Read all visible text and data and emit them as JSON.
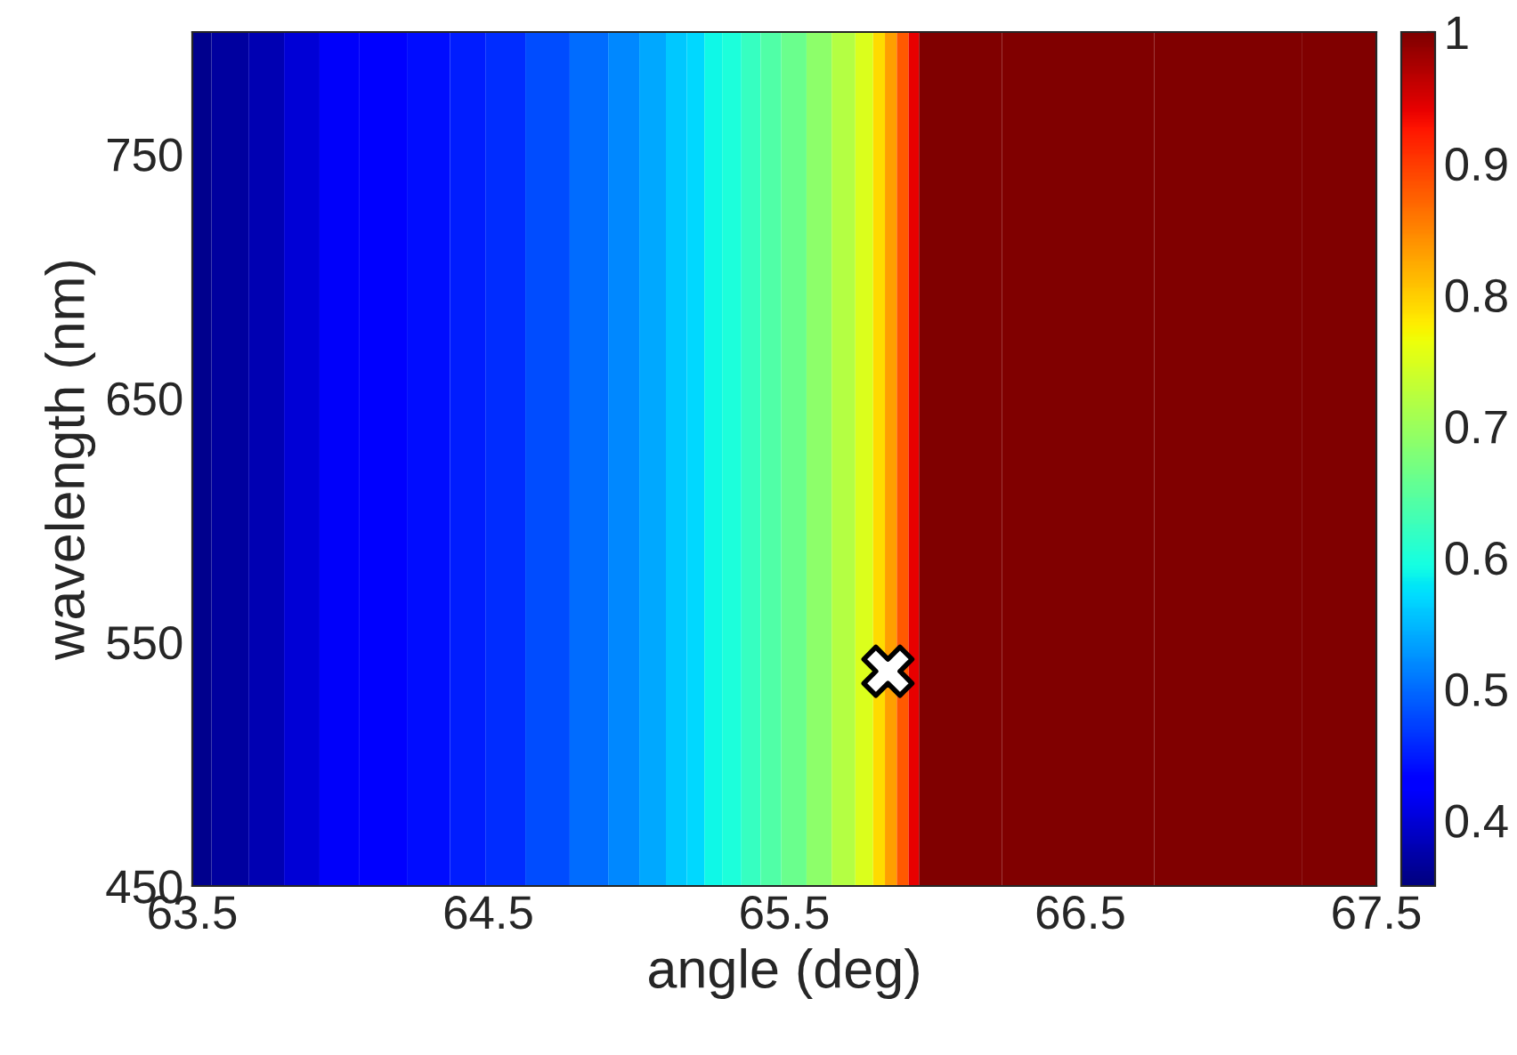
{
  "chart_data": {
    "type": "heatmap",
    "xlabel": "angle (deg)",
    "ylabel": "wavelength (nm)",
    "x": [
      63.5,
      63.63,
      63.75,
      63.87,
      63.99,
      64.14,
      64.31,
      64.43,
      64.55,
      64.7,
      64.85,
      64.96,
      65.06,
      65.14,
      65.2,
      65.26,
      65.32,
      65.39,
      65.45,
      65.53,
      65.62,
      65.7,
      65.78,
      65.82,
      65.86,
      65.9,
      65.94,
      65.97,
      66.5,
      67.0,
      67.5
    ],
    "cells": [
      [
        0.36,
        0.37,
        0.38,
        0.4,
        0.42,
        0.43,
        0.44,
        0.45,
        0.46,
        0.48,
        0.5,
        0.52,
        0.54,
        0.56,
        0.57,
        0.59,
        0.6,
        0.62,
        0.64,
        0.66,
        0.69,
        0.72,
        0.75,
        0.79,
        0.83,
        0.88,
        0.94,
        1,
        1,
        1,
        1
      ]
    ],
    "xlim": [
      63.5,
      67.5
    ],
    "xticks": [
      63.5,
      64.5,
      65.5,
      66.5,
      67.5
    ],
    "ylim": [
      450,
      800
    ],
    "yticks": [
      450,
      550,
      650,
      750
    ],
    "clim": [
      0.35,
      1
    ],
    "cticks": [
      0.4,
      0.5,
      0.6,
      0.7,
      0.8,
      0.9,
      1
    ],
    "series": [
      {
        "type": "scatter",
        "x": [
          65.85
        ],
        "values": [
          538
        ],
        "color": "#ffffff",
        "marker": "cross"
      }
    ],
    "grid": false
  }
}
